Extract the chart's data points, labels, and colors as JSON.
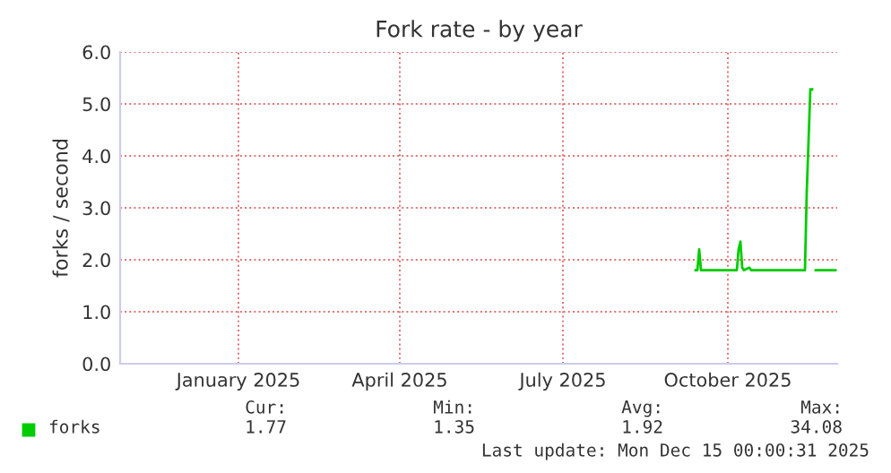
{
  "chart_data": {
    "type": "line",
    "title": "Fork rate - by year",
    "ylabel": "forks / second",
    "x": [
      "2025-09-27",
      "2025-09-28",
      "2025-09-29",
      "2025-09-30",
      "2025-10-01",
      "2025-10-20",
      "2025-10-21",
      "2025-10-22",
      "2025-10-23",
      "2025-10-24",
      "2025-10-27",
      "2025-10-28",
      "2025-11-27",
      "2025-11-28",
      "2025-11-30",
      "2025-12-01",
      "2025-12-02",
      "2025-12-03",
      "2025-12-14"
    ],
    "series": [
      {
        "name": "forks",
        "color": "#00cc00",
        "values": [
          1.8,
          1.8,
          2.2,
          1.8,
          1.8,
          1.8,
          2.2,
          2.35,
          1.85,
          1.8,
          1.85,
          1.8,
          1.8,
          3.3,
          5.28,
          5.28,
          null,
          1.8,
          1.8
        ]
      }
    ],
    "xlim": [
      "2024-11-10",
      "2025-12-15"
    ],
    "xticks": [
      {
        "value": "2025-01-15",
        "label": "January 2025"
      },
      {
        "value": "2025-04-15",
        "label": "April 2025"
      },
      {
        "value": "2025-07-15",
        "label": "July 2025"
      },
      {
        "value": "2025-10-15",
        "label": "October 2025"
      }
    ],
    "ylim": [
      0,
      6
    ],
    "yticks": [
      {
        "value": 0,
        "label": "0.0"
      },
      {
        "value": 1,
        "label": "1.0"
      },
      {
        "value": 2,
        "label": "2.0"
      },
      {
        "value": 3,
        "label": "3.0"
      },
      {
        "value": 4,
        "label": "4.0"
      },
      {
        "value": 5,
        "label": "5.0"
      },
      {
        "value": 6,
        "label": "6.0"
      }
    ],
    "grid": true,
    "legend": "bottom left",
    "annotations": [
      "Cur:",
      "Min:",
      "Avg:",
      "Max:",
      "1.77",
      "1.35",
      "1.92",
      "34.08",
      "Last update: Mon Dec 15 00:00:31 2025"
    ]
  }
}
